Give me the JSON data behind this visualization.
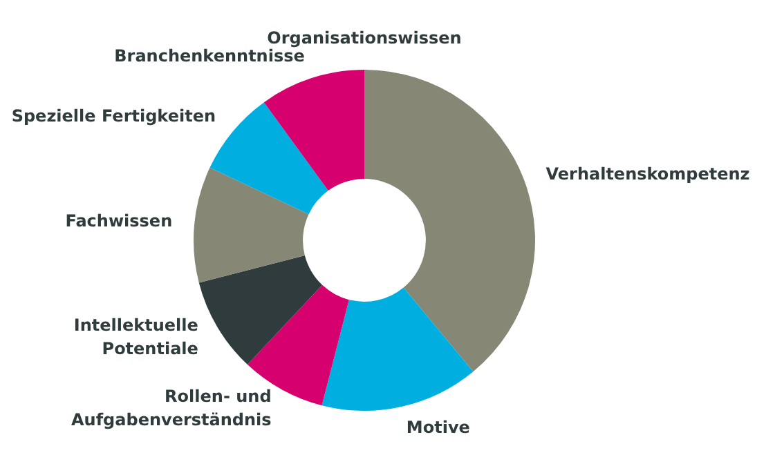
{
  "chart_data": {
    "type": "donut",
    "categories": [
      "Verhaltenskompetenz",
      "Motive",
      "Rollen- und Aufgabenverständnis",
      "Intellektuelle Potentiale",
      "Fachwissen",
      "Spezielle Fertigkeiten",
      "Branchenkenntnisse",
      "Organisationswissen"
    ],
    "values": [
      39,
      15,
      8,
      9,
      11,
      8,
      10,
      0
    ],
    "colors": [
      "#878775",
      "#00aee0",
      "#d6006e",
      "#2f3b3d",
      "#878775",
      "#00aee0",
      "#d6006e",
      "#d6006e"
    ],
    "legend": false
  }
}
